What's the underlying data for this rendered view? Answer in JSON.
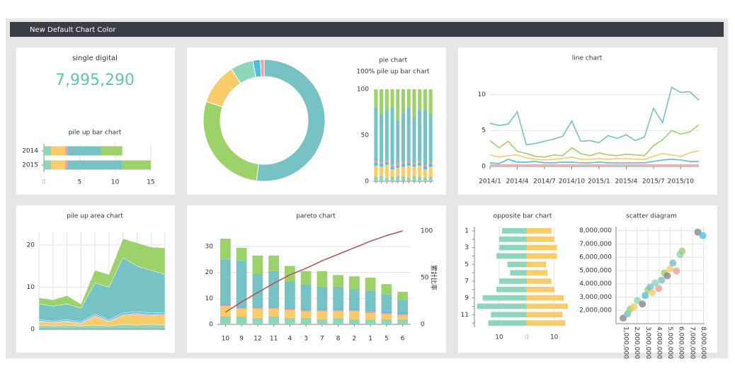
{
  "header": {
    "title": "New Default Chart Color"
  },
  "kpi": {
    "title": "single digital",
    "value": "7,995,290"
  },
  "chart_data": [
    {
      "type": "bar",
      "title": "pile up bar chart",
      "orientation": "horizontal",
      "stacked": true,
      "grid": true,
      "categories": [
        "2014",
        "2015"
      ],
      "xlim": [
        0,
        16
      ],
      "xticks": [
        0,
        5,
        10,
        15
      ],
      "series": [
        {
          "color": "#8dd6b9",
          "values": [
            1,
            1
          ]
        },
        {
          "color": "#f8cb6b",
          "values": [
            2,
            2
          ]
        },
        {
          "color": "#f19b9b",
          "values": [
            0.3,
            0.3
          ]
        },
        {
          "color": "#76c2c4",
          "values": [
            4.7,
            7.7
          ]
        },
        {
          "color": "#9dd16a",
          "values": [
            3,
            4
          ]
        }
      ]
    },
    {
      "type": "pie",
      "title": "pie chart",
      "donut": true,
      "values": [
        52,
        28,
        11,
        6,
        2,
        1
      ],
      "colors": [
        "#76c2c4",
        "#9dd16a",
        "#f8cb6b",
        "#8dd6b9",
        "#4dbfe0",
        "#f19b9b"
      ]
    },
    {
      "type": "bar",
      "title": "100% pile up bar chart",
      "stacked": true,
      "categories": [
        null,
        null,
        null,
        null,
        null,
        null,
        null,
        null,
        null,
        null,
        null
      ],
      "ylim": [
        0,
        100
      ],
      "yticks": [
        0,
        50,
        100
      ],
      "series": [
        {
          "color": "#8dd6b9",
          "values": [
            5,
            6,
            4,
            5,
            6,
            5,
            4,
            6,
            5,
            4,
            5
          ]
        },
        {
          "color": "#f8cb6b",
          "values": [
            12,
            10,
            14,
            8,
            9,
            11,
            13,
            10,
            12,
            9,
            11
          ]
        },
        {
          "color": "#4dbfe0",
          "values": [
            3,
            3,
            3,
            3,
            2,
            3,
            3,
            2,
            3,
            3,
            3
          ]
        },
        {
          "color": "#f19b9b",
          "values": [
            2,
            2,
            2,
            2,
            2,
            2,
            2,
            2,
            2,
            2,
            2
          ]
        },
        {
          "color": "#76c2c4",
          "values": [
            58,
            52,
            55,
            62,
            48,
            54,
            58,
            50,
            56,
            60,
            52
          ]
        },
        {
          "color": "#9dd16a",
          "values": [
            20,
            27,
            22,
            20,
            33,
            25,
            20,
            30,
            22,
            22,
            27
          ]
        }
      ]
    },
    {
      "type": "line",
      "title": "line chart",
      "grid": true,
      "categories": [
        "2014/1",
        null,
        null,
        "2014/4",
        null,
        null,
        "2014/7",
        null,
        null,
        "2014/10",
        null,
        null,
        "2015/1",
        null,
        null,
        "2015/4",
        null,
        null,
        "2015/7",
        null,
        null,
        "2015/10",
        null,
        null
      ],
      "ylim": [
        0,
        13
      ],
      "yticks": [
        0,
        5,
        10
      ],
      "series": [
        {
          "color": "#76c2c4",
          "values": [
            6,
            5.7,
            5.9,
            7.6,
            3,
            3.2,
            3.5,
            3.8,
            4.2,
            6.3,
            3.5,
            3.6,
            3.3,
            4.3,
            3.9,
            4.4,
            3.6,
            4.1,
            8.1,
            6.1,
            11,
            10.3,
            10.4,
            9.2
          ]
        },
        {
          "color": "#9dd16a",
          "values": [
            3.6,
            2.6,
            3.5,
            2.1,
            1.8,
            1.4,
            1.3,
            1.6,
            1.5,
            2.6,
            1.8,
            1.5,
            1.9,
            1.6,
            1.5,
            1.7,
            1.6,
            1.5,
            2.9,
            3.7,
            5,
            4.5,
            4.8,
            5.8
          ]
        },
        {
          "color": "#f8cb6b",
          "values": [
            1.6,
            1.3,
            1.5,
            1.6,
            1.2,
            1,
            0.9,
            1,
            1.1,
            1.3,
            1,
            1,
            1.1,
            1,
            1.1,
            1.1,
            1,
            1,
            1.4,
            1.8,
            1.6,
            1.4,
            1.9,
            2.2
          ]
        },
        {
          "color": "#4dbfe0",
          "values": [
            0.5,
            0.4,
            1,
            0.6,
            0.6,
            0.7,
            0.5,
            0.5,
            0.6,
            0.6,
            0.5,
            0.5,
            0.6,
            0.5,
            0.5,
            0.5,
            0.5,
            0.5,
            0.7,
            0.9,
            1,
            0.9,
            0.7,
            0.7
          ]
        },
        {
          "color": "#f19b9b",
          "values": [
            0.2,
            0.2,
            0.2,
            0.2,
            0.2,
            0.2,
            0.2,
            0.2,
            0.2,
            0.2,
            0.2,
            0.2,
            0.2,
            0.2,
            0.2,
            0.2,
            0.2,
            0.2,
            0.2,
            0.2,
            0.2,
            0.2,
            0.2,
            0.2
          ]
        }
      ]
    },
    {
      "type": "area",
      "title": "pile up area chart",
      "stacked": true,
      "grid": true,
      "categories": [
        null,
        null,
        null,
        null,
        null,
        null,
        null,
        null,
        null,
        null
      ],
      "ylim": [
        0,
        23
      ],
      "yticks": [
        0,
        10,
        20
      ],
      "series": [
        {
          "color": "#8dd6b9",
          "values": [
            1,
            0.8,
            1,
            0.8,
            1,
            0.8,
            1.2,
            1,
            1.2,
            1
          ]
        },
        {
          "color": "#f8cb6b",
          "values": [
            0.8,
            0.7,
            0.8,
            0.5,
            2,
            1,
            2,
            2.5,
            2,
            2.3
          ]
        },
        {
          "color": "#f19b9b",
          "values": [
            0.2,
            0.2,
            0.2,
            0.2,
            0.3,
            0.2,
            0.3,
            0.3,
            0.3,
            0.3
          ]
        },
        {
          "color": "#4dbfe0",
          "values": [
            0.3,
            0.3,
            0.3,
            0.3,
            0.3,
            0.3,
            0.4,
            0.4,
            0.4,
            0.4
          ]
        },
        {
          "color": "#76c2c4",
          "values": [
            3.7,
            3.5,
            3.7,
            3.2,
            7.4,
            7.7,
            13.1,
            10.8,
            10.1,
            9
          ]
        },
        {
          "color": "#9dd16a",
          "values": [
            1.5,
            1.5,
            2,
            1,
            3,
            3,
            4.5,
            5.5,
            5.5,
            6.3
          ]
        }
      ]
    },
    {
      "type": "bar",
      "title": "pareto chart",
      "stacked": true,
      "grid": true,
      "categories": [
        "10",
        "9",
        "12",
        "11",
        "4",
        "3",
        "7",
        "8",
        "2",
        "1",
        "5",
        "6"
      ],
      "ylim": [
        0,
        36
      ],
      "yticks": [
        0,
        10,
        20,
        30
      ],
      "y2lim": [
        0,
        100
      ],
      "y2ticks": [
        0,
        50,
        100
      ],
      "y2label": "累計比率",
      "series": [
        {
          "color": "#8dd6b9",
          "values": [
            3,
            3,
            2.5,
            3,
            2.5,
            2.5,
            2,
            2.5,
            2,
            2,
            2,
            2
          ]
        },
        {
          "color": "#f8cb6b",
          "values": [
            4,
            3,
            3.5,
            3,
            3,
            2.5,
            3,
            2.5,
            3,
            2.5,
            2,
            1.5
          ]
        },
        {
          "color": "#f19b9b",
          "values": [
            0.5,
            0.5,
            0.5,
            0.5,
            0.5,
            0.5,
            0.5,
            0.5,
            0.5,
            0.5,
            0.5,
            0.5
          ]
        },
        {
          "color": "#4dbfe0",
          "values": [
            0.5,
            0.5,
            0.5,
            0.5,
            0.5,
            0.5,
            0.5,
            0.5,
            0.5,
            0.5,
            0.5,
            0.5
          ]
        },
        {
          "color": "#76c2c4",
          "values": [
            17,
            17.5,
            12.5,
            13.5,
            10,
            9.5,
            8.5,
            8.5,
            7.5,
            7.5,
            6.5,
            5
          ]
        },
        {
          "color": "#9dd16a",
          "values": [
            8,
            5,
            7,
            6,
            6,
            5,
            6,
            4.5,
            5,
            5,
            4,
            3
          ]
        },
        {
          "color": "#b5504f",
          "type": "line",
          "axis": "y2",
          "values": [
            13,
            24,
            34,
            44,
            53,
            60,
            68,
            75,
            82,
            89,
            95,
            100
          ]
        }
      ]
    },
    {
      "type": "bar",
      "title": "opposite bar chart",
      "orientation": "horizontal",
      "stacked": false,
      "grid": true,
      "categories": [
        "1",
        null,
        "3",
        null,
        "5",
        null,
        "7",
        null,
        "9",
        null,
        "11",
        null
      ],
      "xlim": [
        -19,
        16
      ],
      "xticks": [
        {
          "value": -10,
          "label": "10"
        },
        0,
        10
      ],
      "series": [
        {
          "color": "#8dd6b9",
          "values": [
            -9,
            -10,
            -10,
            -11,
            -7,
            -6,
            -10,
            -11,
            -16,
            -18,
            -13,
            -14
          ]
        },
        {
          "color": "#f8cb6b",
          "values": [
            9,
            10,
            11,
            11,
            7,
            7.5,
            9,
            10,
            13.5,
            15,
            13,
            14
          ]
        }
      ]
    },
    {
      "type": "scatter",
      "title": "scatter diagram",
      "grid": true,
      "x": [
        740000,
        1130000,
        1390000,
        1710000,
        2030000,
        2480000,
        2730000,
        2990000,
        3180000,
        3380000,
        3630000,
        3950000,
        4210000,
        4470000,
        4730000,
        4980000,
        5240000,
        5560000,
        5880000,
        6070000,
        7490000,
        7940000
      ],
      "y": [
        1420000,
        1730000,
        2110000,
        2270000,
        2740000,
        2480000,
        3120000,
        3540000,
        3750000,
        3330000,
        4070000,
        3650000,
        4280000,
        4810000,
        4600000,
        5130000,
        5560000,
        4970000,
        6200000,
        6460000,
        7890000,
        7630000
      ],
      "colors": [
        "#888888",
        "#76c2c4",
        "#9dd16a",
        "#f8cb6b",
        "#8dd6b9",
        "#888888",
        "#4dbfe0",
        "#9dd16a",
        "#76c2c4",
        "#f8cb6b",
        "#8dd6b9",
        "#f19b9b",
        "#76c2c4",
        "#9dd16a",
        "#888888",
        "#f8cb6b",
        "#76c2c4",
        "#f19b9b",
        "#8dd6b9",
        "#9dd16a",
        "#888888",
        "#4dbfe0"
      ],
      "xlim": [
        100000,
        8100000
      ],
      "xticks": [
        {
          "value": 1000000,
          "label": "1,000,000"
        },
        {
          "value": 2000000,
          "label": "2,000,000"
        },
        {
          "value": 3000000,
          "label": "3,000,000"
        },
        {
          "value": 4000000,
          "label": "4,000,000"
        },
        {
          "value": 5000000,
          "label": "5,000,000"
        },
        {
          "value": 6000000,
          "label": "6,000,000"
        },
        {
          "value": 7000000,
          "label": "7,000,000"
        },
        {
          "value": 8000000,
          "label": "8,000,000"
        }
      ],
      "ylim": [
        1000000,
        8300000
      ],
      "yticks": [
        {
          "value": 2000000,
          "label": "2,000,000"
        },
        {
          "value": 3000000,
          "label": "3,000,000"
        },
        {
          "value": 4000000,
          "label": "4,000,000"
        },
        {
          "value": 5000000,
          "label": "5,000,000"
        },
        {
          "value": 6000000,
          "label": "6,000,000"
        },
        {
          "value": 7000000,
          "label": "7,000,000"
        },
        {
          "value": 8000000,
          "label": "8,000,000"
        }
      ]
    }
  ]
}
